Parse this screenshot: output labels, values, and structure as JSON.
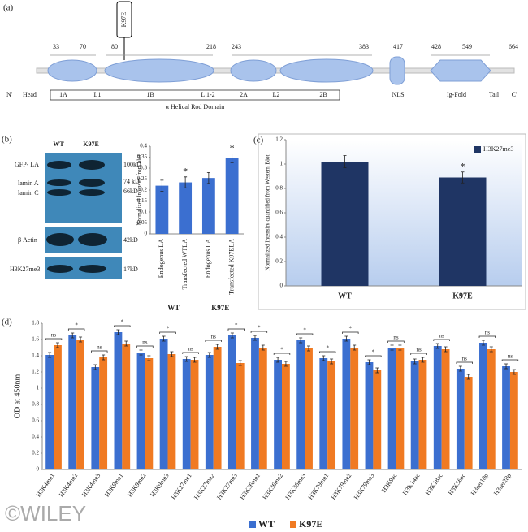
{
  "panel_a": {
    "label": "(a)",
    "mutation": "K97E",
    "positions": [
      "33",
      "70",
      "80",
      "218",
      "243",
      "383",
      "417",
      "428",
      "549",
      "664"
    ],
    "domains": [
      "1A",
      "L1",
      "1B",
      "L 1-2",
      "2A",
      "L2",
      "2B"
    ],
    "ends": [
      "N'",
      "Head",
      "NLS",
      "Ig-Fold",
      "Tail",
      "C'"
    ],
    "rod": "α Helical Rod Domain"
  },
  "panel_b_blot": {
    "label": "(b)",
    "lanes": [
      "WT",
      "K97E"
    ],
    "bands": [
      "GFP- LA",
      "lamin A",
      "lamin C",
      "β Actin",
      "H3K27me3"
    ],
    "sizes": [
      "100kD",
      "74 kD",
      "66kD",
      "42kD",
      "17kD"
    ]
  },
  "panel_labels": [
    "(c)",
    "(d)"
  ],
  "watermark": "©WILEY",
  "chart_data": [
    {
      "type": "bar",
      "y_label": "Normalized Intensity from blot",
      "categories": [
        "Endogenus LA",
        "Transfected WTLA",
        "Endogenus LA",
        "Transfected K97ELA"
      ],
      "group_labels": [
        "WT",
        "K97E"
      ],
      "series": [
        {
          "color": "#3b6fd0",
          "values": [
            0.22,
            0.235,
            0.255,
            0.345
          ],
          "errors": [
            0.025,
            0.025,
            0.025,
            0.02
          ]
        }
      ],
      "annotations": [
        {
          "category": "Transfected WTLA",
          "text": "*"
        },
        {
          "category": "Transfected K97ELA",
          "text": "*"
        }
      ],
      "ylim": [
        0,
        0.4
      ],
      "yticks": [
        0,
        0.05,
        0.1,
        0.15,
        0.2,
        0.25,
        0.3,
        0.35,
        0.4
      ],
      "grid": false
    },
    {
      "type": "bar",
      "y_label": "Normalized Intensity quantified from Western Blot",
      "categories": [
        "WT",
        "K97E"
      ],
      "series": [
        {
          "name": "H3K27me3",
          "color": "#1f3564",
          "values": [
            1.02,
            0.89
          ],
          "errors": [
            0.05,
            0.045
          ]
        }
      ],
      "annotations": [
        {
          "category": "K97E",
          "text": "*"
        }
      ],
      "ylim": [
        0,
        1.2
      ],
      "yticks": [
        0,
        0.2,
        0.4,
        0.6,
        0.8,
        1,
        1.2
      ],
      "grid": false,
      "legend": "upper right"
    },
    {
      "type": "bar",
      "y_label": "OD at 450nm",
      "categories": [
        "H3K4me1",
        "H3K4me2",
        "H3K4me3",
        "H3K9me1",
        "H3K9me2",
        "H3K9me3",
        "H3K27me1",
        "H3K27me2",
        "H3K27me3",
        "H3K36me1",
        "H3K36me2",
        "H3K36me3",
        "H3K79me1",
        "H3K79me2",
        "H3K79me3",
        "H3K9ac",
        "H3K14ac",
        "H3K18ac",
        "H3K56ac",
        "H3ser10p",
        "H3ser28p"
      ],
      "series": [
        {
          "name": "WT",
          "color": "#3b6fd0",
          "values": [
            1.41,
            1.65,
            1.26,
            1.69,
            1.44,
            1.61,
            1.36,
            1.41,
            1.65,
            1.62,
            1.35,
            1.59,
            1.37,
            1.61,
            1.32,
            1.5,
            1.33,
            1.52,
            1.24,
            1.56,
            1.27
          ],
          "errors": [
            0.03,
            0.03,
            0.03,
            0.03,
            0.03,
            0.03,
            0.03,
            0.03,
            0.03,
            0.03,
            0.03,
            0.03,
            0.03,
            0.03,
            0.03,
            0.03,
            0.03,
            0.03,
            0.03,
            0.03,
            0.03
          ]
        },
        {
          "name": "K97E",
          "color": "#f07a22",
          "values": [
            1.53,
            1.6,
            1.38,
            1.55,
            1.37,
            1.42,
            1.35,
            1.51,
            1.31,
            1.5,
            1.3,
            1.49,
            1.33,
            1.5,
            1.22,
            1.5,
            1.35,
            1.48,
            1.14,
            1.48,
            1.2
          ],
          "errors": [
            0.03,
            0.03,
            0.03,
            0.03,
            0.03,
            0.03,
            0.03,
            0.03,
            0.03,
            0.03,
            0.03,
            0.03,
            0.03,
            0.03,
            0.03,
            0.03,
            0.03,
            0.03,
            0.03,
            0.03,
            0.03
          ]
        }
      ],
      "significance": [
        "ns",
        "*",
        "ns",
        "*",
        "ns",
        "*",
        "ns",
        "ns",
        "*",
        "*",
        "*",
        "*",
        "*",
        "*",
        "*",
        "ns",
        "ns",
        "ns",
        "ns",
        "ns",
        "ns"
      ],
      "ylim": [
        0,
        1.8
      ],
      "yticks": [
        0,
        0.2,
        0.4,
        0.6,
        0.8,
        1,
        1.2,
        1.4,
        1.6,
        1.8
      ],
      "grid": false,
      "legend": "bottom"
    }
  ]
}
